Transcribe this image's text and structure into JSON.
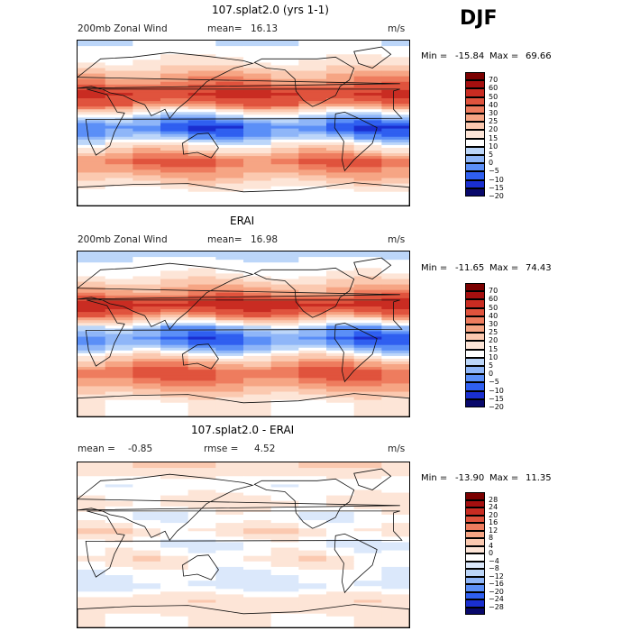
{
  "season": "DJF",
  "chart_data": [
    {
      "type": "heatmap",
      "title": "107.splat2.0 (yrs 1-1)",
      "left_label": "200mb Zonal Wind",
      "stat_label": "mean=",
      "stat_value": "16.13",
      "units": "m/s",
      "min_label": "Min =",
      "min_value": "-15.84",
      "max_label": "Max =",
      "max_value": "69.66",
      "colorbar": {
        "colors": [
          "#08086b",
          "#1a2fd0",
          "#2f5ff0",
          "#5b8ff7",
          "#8fb6f8",
          "#bcd6f9",
          "#ffffff",
          "#fde5d7",
          "#fbc9b0",
          "#f6a584",
          "#ee7c5e",
          "#e0533d",
          "#c92c22",
          "#a50f0f",
          "#7a0000"
        ],
        "tick_labels": [
          "70",
          "60",
          "50",
          "40",
          "30",
          "25",
          "20",
          "15",
          "10",
          "5",
          "0",
          "−5",
          "−10",
          "−15",
          "−20"
        ]
      },
      "zones": [
        {
          "lat": 85,
          "value": 5
        },
        {
          "lat": 65,
          "value": 12
        },
        {
          "lat": 45,
          "value": 25
        },
        {
          "lat": 32,
          "value": 42
        },
        {
          "lat": 20,
          "value": 28
        },
        {
          "lat": 8,
          "value": 2
        },
        {
          "lat": -5,
          "value": -12
        },
        {
          "lat": -15,
          "value": -4
        },
        {
          "lat": -25,
          "value": 12
        },
        {
          "lat": -42,
          "value": 30
        },
        {
          "lat": -55,
          "value": 22
        },
        {
          "lat": -75,
          "value": 8
        }
      ]
    },
    {
      "type": "heatmap",
      "title": "ERAI",
      "left_label": "200mb Zonal Wind",
      "stat_label": "mean=",
      "stat_value": "16.98",
      "units": "m/s",
      "min_label": "Min =",
      "min_value": "-11.65",
      "max_label": "Max =",
      "max_value": "74.43",
      "colorbar": {
        "colors": [
          "#08086b",
          "#1a2fd0",
          "#2f5ff0",
          "#5b8ff7",
          "#8fb6f8",
          "#bcd6f9",
          "#ffffff",
          "#fde5d7",
          "#fbc9b0",
          "#f6a584",
          "#ee7c5e",
          "#e0533d",
          "#c92c22",
          "#a50f0f",
          "#7a0000"
        ],
        "tick_labels": [
          "70",
          "60",
          "50",
          "40",
          "30",
          "25",
          "20",
          "15",
          "10",
          "5",
          "0",
          "−5",
          "−10",
          "−15",
          "−20"
        ]
      },
      "zones": [
        {
          "lat": 85,
          "value": 4
        },
        {
          "lat": 65,
          "value": 10
        },
        {
          "lat": 45,
          "value": 24
        },
        {
          "lat": 32,
          "value": 46
        },
        {
          "lat": 20,
          "value": 26
        },
        {
          "lat": 8,
          "value": 0
        },
        {
          "lat": -5,
          "value": -10
        },
        {
          "lat": -15,
          "value": -3
        },
        {
          "lat": -25,
          "value": 14
        },
        {
          "lat": -42,
          "value": 32
        },
        {
          "lat": -55,
          "value": 24
        },
        {
          "lat": -75,
          "value": 10
        }
      ]
    },
    {
      "type": "heatmap",
      "title": "107.splat2.0 - ERAI",
      "left_label": "mean =",
      "left_value": "-0.85",
      "stat_label": "rmse =",
      "stat_value": "4.52",
      "units": "m/s",
      "min_label": "Min =",
      "min_value": "-13.90",
      "max_label": "Max =",
      "max_value": "11.35",
      "colorbar": {
        "colors": [
          "#08086b",
          "#1a2fd0",
          "#2f5ff0",
          "#5b8ff7",
          "#8fb6f8",
          "#bcd6f9",
          "#dbe8fb",
          "#ffffff",
          "#fde5d7",
          "#fbc9b0",
          "#f6a584",
          "#ee7c5e",
          "#e0533d",
          "#c92c22",
          "#a50f0f",
          "#7a0000"
        ],
        "tick_labels": [
          "28",
          "24",
          "20",
          "16",
          "12",
          "8",
          "4",
          "0",
          "−4",
          "−8",
          "−12",
          "−16",
          "−20",
          "−24",
          "−28"
        ]
      },
      "zones": [
        {
          "lat": 85,
          "value": 4
        },
        {
          "lat": 65,
          "value": -3
        },
        {
          "lat": 45,
          "value": 2
        },
        {
          "lat": 30,
          "value": -4
        },
        {
          "lat": 15,
          "value": 3
        },
        {
          "lat": 0,
          "value": -5
        },
        {
          "lat": -15,
          "value": 2
        },
        {
          "lat": -30,
          "value": -3
        },
        {
          "lat": -45,
          "value": -6
        },
        {
          "lat": -60,
          "value": 3
        },
        {
          "lat": -80,
          "value": 0
        }
      ]
    }
  ]
}
